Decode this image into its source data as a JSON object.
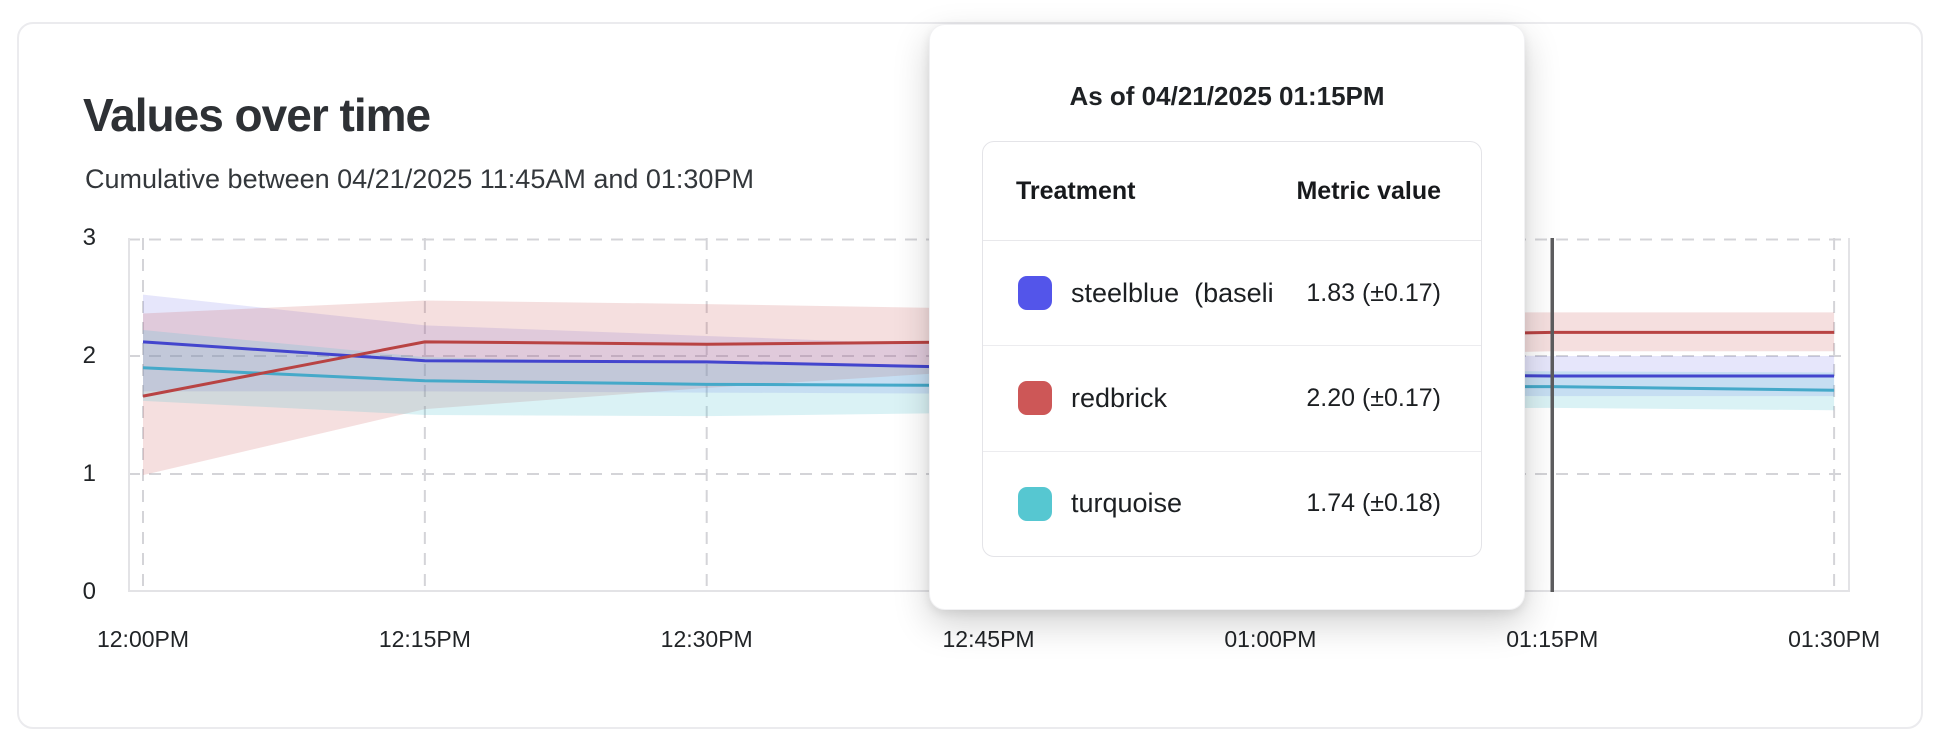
{
  "accent_colors": {
    "steelblue_line": "#4345cd",
    "steelblue_swatch": "#5355ea",
    "redbrick_line": "#b84343",
    "redbrick_swatch": "#cd5757",
    "turquoise_line": "#45a9c9",
    "turquoise_swatch": "#56c7d1",
    "marker_line": "#5c5c5e",
    "gridline": "#d4d4d8",
    "plot_border": "#e3e3e6"
  },
  "card": {
    "title": "Values over time",
    "subtitle": "Cumulative between 04/21/2025 11:45AM and 01:30PM"
  },
  "tooltip": {
    "title": "As of 04/21/2025 01:15PM",
    "columns": [
      "Treatment",
      "Metric value"
    ],
    "rows": [
      {
        "label": "steelblue  (baseli",
        "value": "1.83 (±0.17)",
        "swatch_color": "#5355ea"
      },
      {
        "label": "redbrick",
        "value": "2.20 (±0.17)",
        "swatch_color": "#cd5757"
      },
      {
        "label": "turquoise",
        "value": "1.74 (±0.18)",
        "swatch_color": "#56c7d1"
      }
    ]
  },
  "chart_data": {
    "type": "line",
    "title": "Values over time",
    "xlabel": "",
    "ylabel": "",
    "x": [
      "12:00PM",
      "12:15PM",
      "12:30PM",
      "12:45PM",
      "01:00PM",
      "01:15PM",
      "01:30PM"
    ],
    "y_ticks": [
      0,
      1,
      2,
      3
    ],
    "ylim": [
      0,
      3
    ],
    "grid": "dashed",
    "legend_position": "tooltip",
    "marker_label": "01:15PM",
    "series": [
      {
        "name": "steelblue (baseline)",
        "color": "#4345cd",
        "band_color": "rgba(99,102,228,0.16)",
        "values": [
          2.12,
          1.96,
          1.95,
          1.9,
          1.86,
          1.83,
          1.83
        ],
        "band_upper": [
          2.52,
          2.26,
          2.17,
          2.08,
          2.02,
          2.0,
          2.0
        ],
        "band_lower": [
          1.7,
          1.7,
          1.69,
          1.68,
          1.67,
          1.66,
          1.66
        ]
      },
      {
        "name": "redbrick",
        "color": "#b84343",
        "band_color": "rgba(200,80,80,0.18)",
        "values": [
          1.66,
          2.12,
          2.1,
          2.12,
          2.16,
          2.2,
          2.2
        ],
        "band_upper": [
          2.36,
          2.47,
          2.44,
          2.4,
          2.37,
          2.37,
          2.37
        ],
        "band_lower": [
          0.99,
          1.55,
          1.73,
          1.88,
          1.99,
          2.04,
          2.04
        ]
      },
      {
        "name": "turquoise",
        "color": "#45a9c9",
        "band_color": "rgba(88,198,210,0.22)",
        "values": [
          1.9,
          1.79,
          1.76,
          1.75,
          1.74,
          1.74,
          1.71
        ],
        "band_upper": [
          2.22,
          1.99,
          1.94,
          1.9,
          1.88,
          1.87,
          1.86
        ],
        "band_lower": [
          1.62,
          1.5,
          1.49,
          1.52,
          1.55,
          1.56,
          1.54
        ]
      }
    ]
  }
}
